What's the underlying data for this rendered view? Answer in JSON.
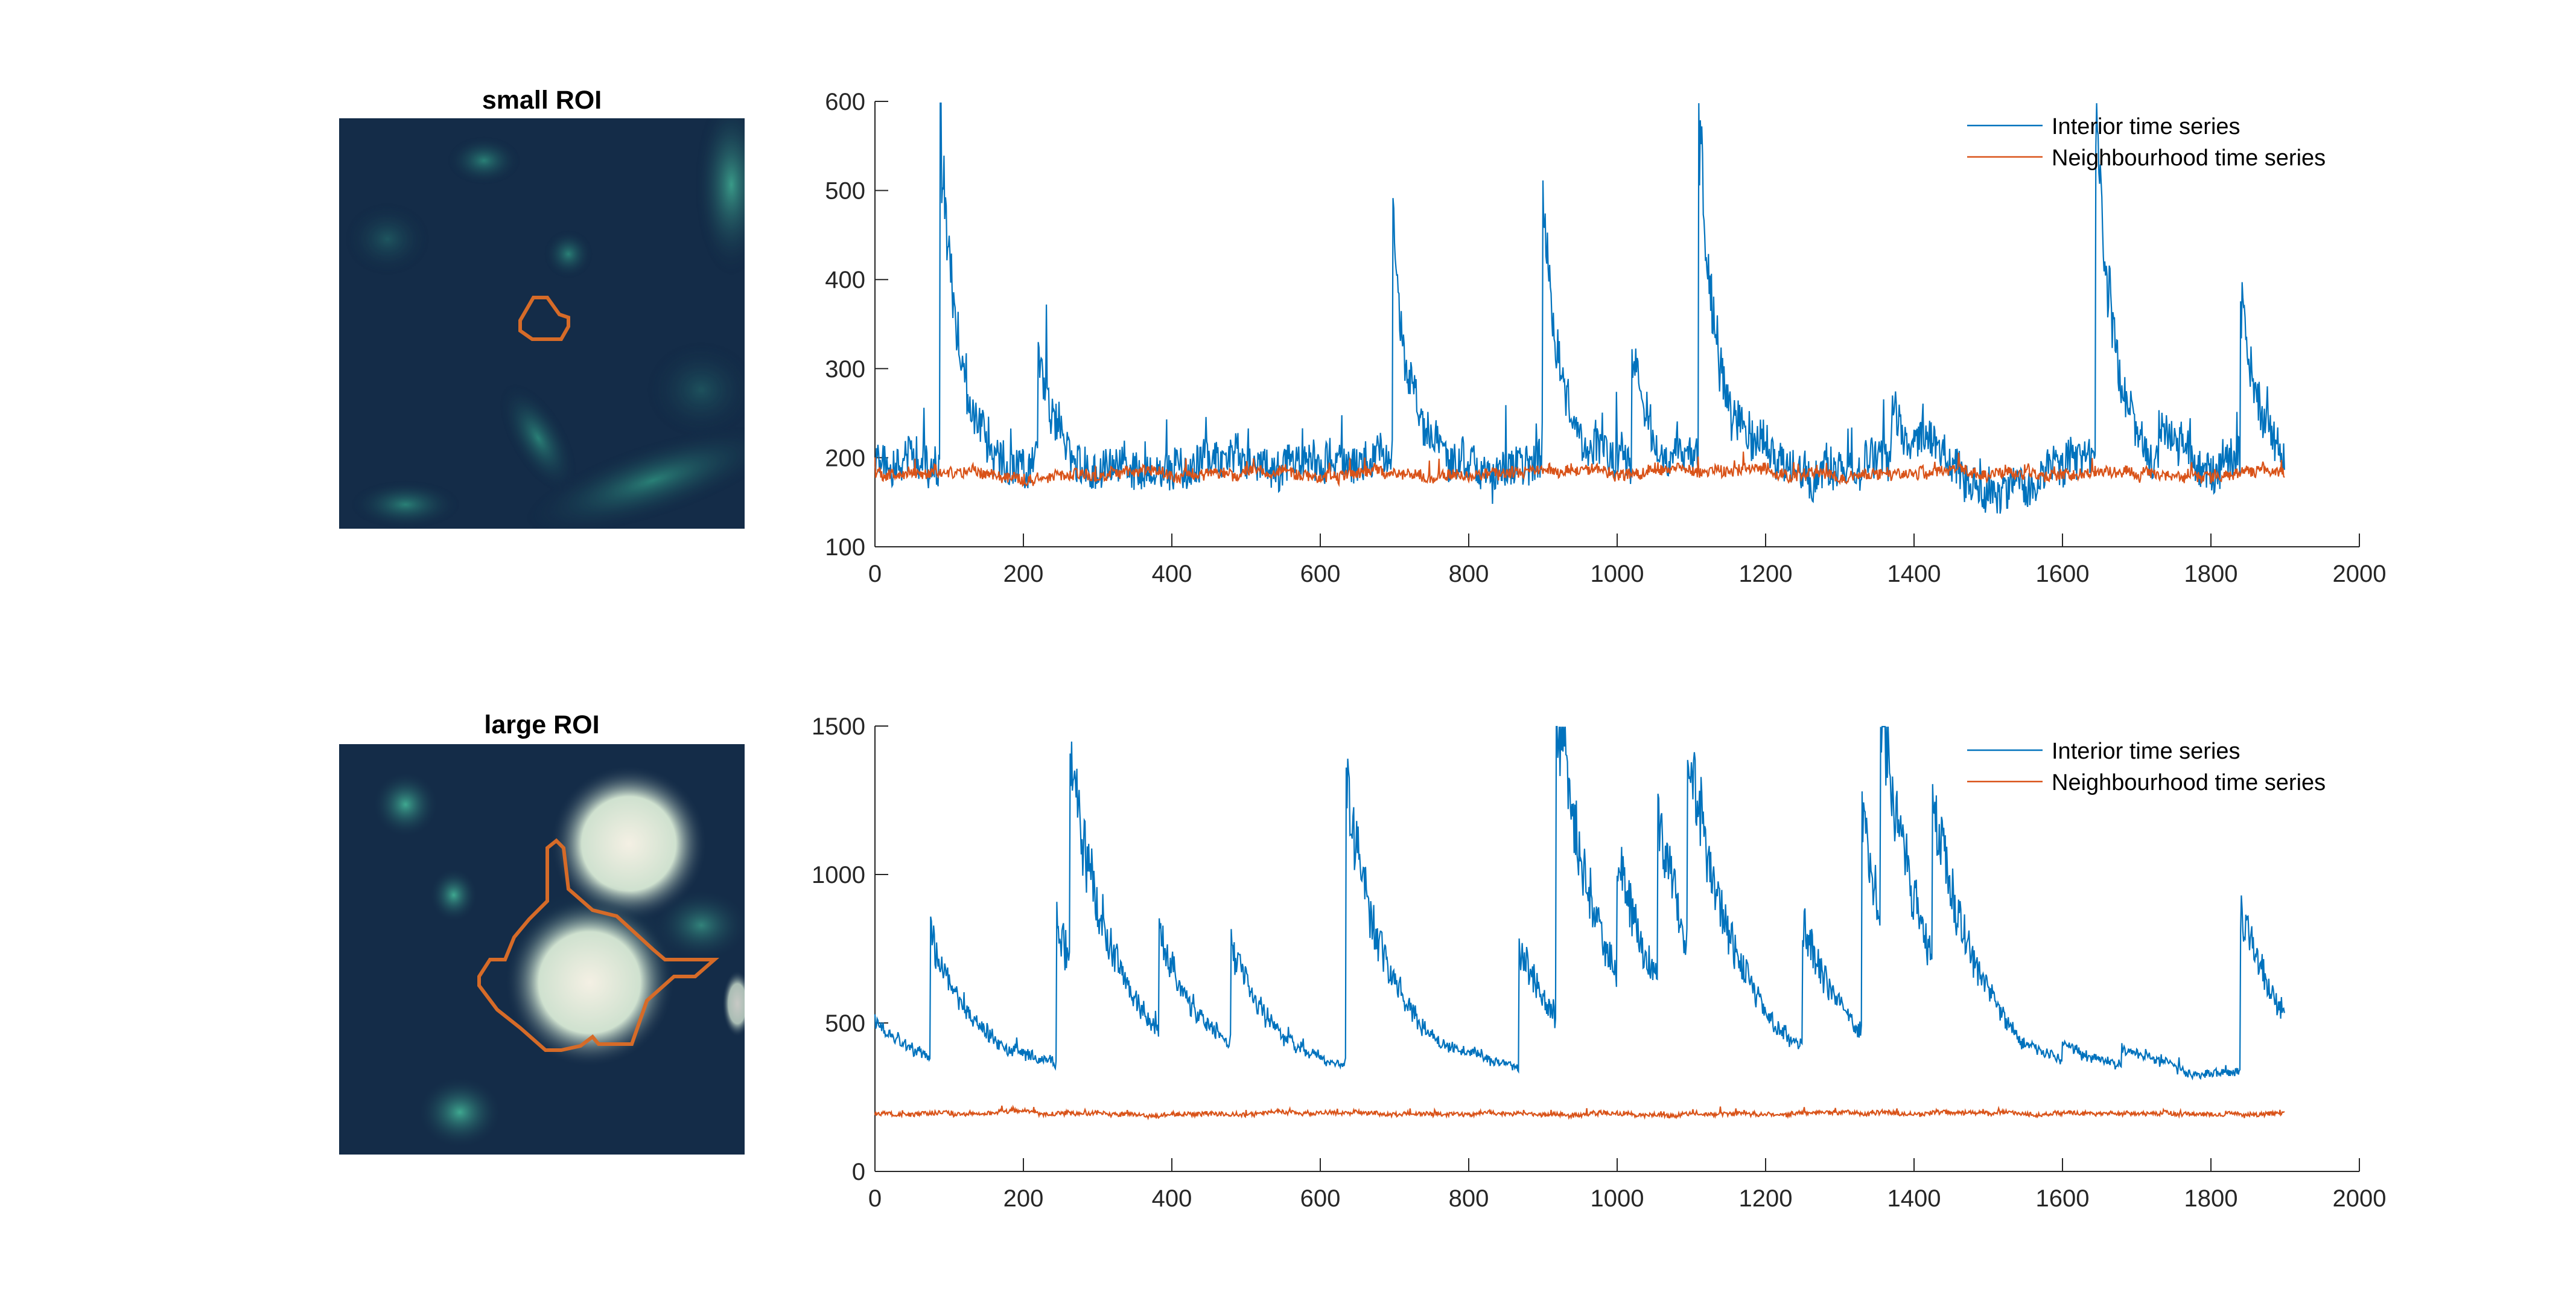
{
  "figure": {
    "top_panel": {
      "image_title": "small ROI"
    },
    "bottom_panel": {
      "image_title": "large ROI"
    }
  },
  "colors": {
    "interior": "#0072BD",
    "neighbourhood": "#D95319",
    "roi_outline": "#D66B28",
    "image_background": "#142c48"
  },
  "chart_data": [
    {
      "type": "line",
      "title": "",
      "xlabel": "",
      "ylabel": "",
      "xlim": [
        0,
        2000
      ],
      "ylim": [
        100,
        600
      ],
      "xticks": [
        0,
        200,
        400,
        600,
        800,
        1000,
        1200,
        1400,
        1600,
        1800,
        2000
      ],
      "yticks": [
        100,
        200,
        300,
        400,
        500,
        600
      ],
      "grid": false,
      "legend": "top-right",
      "series": [
        {
          "name": "Interior time series",
          "baseline": 195,
          "noise": 28,
          "decay": 22,
          "n": 1900,
          "peaks": [
            [
              88,
              390
            ],
            [
              220,
              140
            ],
            [
              698,
              270
            ],
            [
              900,
              285
            ],
            [
              1020,
              140
            ],
            [
              1110,
              375
            ],
            [
              1370,
              60
            ],
            [
              1645,
              360
            ],
            [
              1730,
              60
            ],
            [
              1840,
              180
            ]
          ]
        },
        {
          "name": "Neighbourhood time series",
          "baseline": 183,
          "noise": 8,
          "decay": 25,
          "n": 1900,
          "peaks": []
        }
      ],
      "label_points": {
        "Interior time series": [
          [
            0,
            260
          ],
          [
            88,
            590
          ],
          [
            700,
            470
          ],
          [
            900,
            485
          ],
          [
            1110,
            580
          ],
          [
            1645,
            560
          ],
          [
            1840,
            380
          ],
          [
            1900,
            200
          ]
        ],
        "Neighbourhood time series": [
          [
            0,
            175
          ],
          [
            500,
            185
          ],
          [
            1000,
            180
          ],
          [
            1500,
            185
          ],
          [
            1900,
            180
          ]
        ]
      }
    },
    {
      "type": "line",
      "title": "",
      "xlabel": "",
      "ylabel": "",
      "xlim": [
        0,
        2000
      ],
      "ylim": [
        0,
        1500
      ],
      "xticks": [
        0,
        200,
        400,
        600,
        800,
        1000,
        1200,
        1400,
        1600,
        1800,
        2000
      ],
      "yticks": [
        0,
        500,
        1000,
        1500
      ],
      "grid": false,
      "legend": "top-right",
      "series": [
        {
          "name": "Interior time series",
          "baseline": 330,
          "noise": 18,
          "decay": 60,
          "n": 1900,
          "peaks": [
            [
              0,
              170
            ],
            [
              75,
              420
            ],
            [
              245,
              480
            ],
            [
              263,
              660
            ],
            [
              383,
              340
            ],
            [
              480,
              320
            ],
            [
              635,
              930
            ],
            [
              868,
              420
            ],
            [
              918,
              1100
            ],
            [
              1000,
              420
            ],
            [
              1055,
              560
            ],
            [
              1095,
              740
            ],
            [
              1250,
              420
            ],
            [
              1330,
              710
            ],
            [
              1355,
              720
            ],
            [
              1425,
              560
            ],
            [
              1600,
              50
            ],
            [
              1680,
              60
            ],
            [
              1840,
              540
            ]
          ]
        },
        {
          "name": "Neighbourhood time series",
          "baseline": 195,
          "noise": 9,
          "decay": 40,
          "n": 1900,
          "peaks": []
        }
      ],
      "label_points": {
        "Interior time series": [
          [
            0,
            520
          ],
          [
            75,
            760
          ],
          [
            263,
            1090
          ],
          [
            635,
            1270
          ],
          [
            918,
            1450
          ],
          [
            1095,
            1110
          ],
          [
            1355,
            1140
          ],
          [
            1840,
            880
          ],
          [
            1900,
            480
          ]
        ],
        "Neighbourhood time series": [
          [
            0,
            200
          ],
          [
            270,
            255
          ],
          [
            500,
            190
          ],
          [
            1000,
            195
          ],
          [
            1500,
            185
          ],
          [
            1900,
            180
          ]
        ]
      }
    }
  ]
}
